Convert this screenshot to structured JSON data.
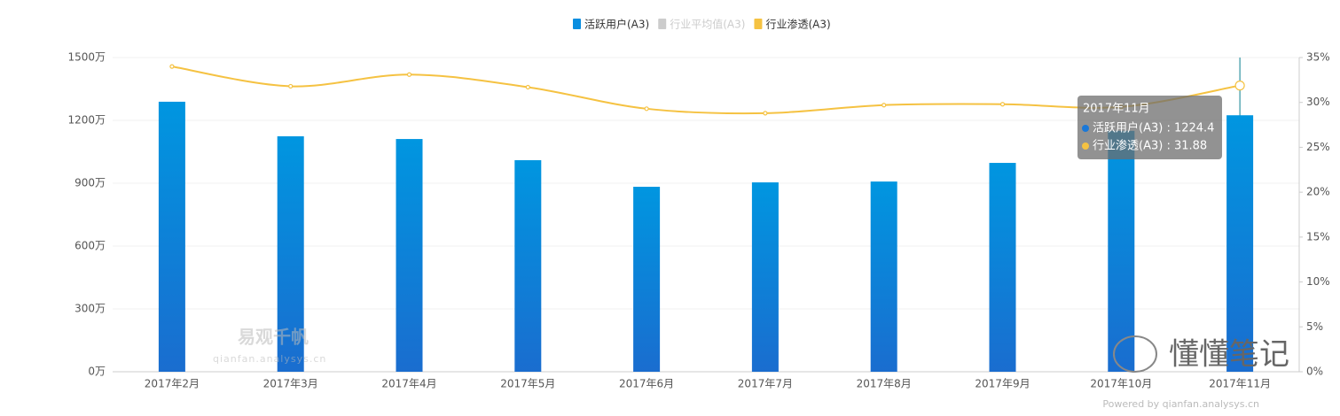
{
  "chart_data": {
    "type": "bar",
    "categories": [
      "2017年2月",
      "2017年3月",
      "2017年4月",
      "2017年5月",
      "2017年6月",
      "2017年7月",
      "2017年8月",
      "2017年9月",
      "2017年10月",
      "2017年11月"
    ],
    "series": [
      {
        "name": "活跃用户(A3)",
        "color": "#0a8ee0",
        "type": "bar",
        "values": [
          1289,
          1124,
          1111,
          1010,
          883,
          904,
          908,
          997,
          1150,
          1224.4
        ]
      },
      {
        "name": "行业平均值(A3)",
        "color": "#cccccc",
        "hidden": true
      },
      {
        "name": "行业渗透(A3)",
        "color": "#f5c242",
        "type": "line",
        "axis": "y2",
        "values": [
          34.0,
          31.8,
          33.1,
          31.7,
          29.3,
          28.8,
          29.7,
          29.8,
          29.5,
          31.88
        ]
      }
    ],
    "ylim": [
      0,
      1500
    ],
    "yticks": [
      {
        "value": 0,
        "label": "0万"
      },
      {
        "value": 300,
        "label": "300万"
      },
      {
        "value": 600,
        "label": "600万"
      },
      {
        "value": 900,
        "label": "900万"
      },
      {
        "value": 1200,
        "label": "1200万"
      },
      {
        "value": 1500,
        "label": "1500万"
      }
    ],
    "y2lim": [
      0,
      35
    ],
    "y2ticks": [
      {
        "value": 0,
        "label": "0%"
      },
      {
        "value": 5,
        "label": "5%"
      },
      {
        "value": 10,
        "label": "10%"
      },
      {
        "value": 15,
        "label": "15%"
      },
      {
        "value": 20,
        "label": "20%"
      },
      {
        "value": 25,
        "label": "25%"
      },
      {
        "value": 30,
        "label": "30%"
      },
      {
        "value": 35,
        "label": "35%"
      }
    ],
    "grid": true,
    "legend": "top",
    "tooltip": {
      "title": "2017年11月",
      "lines": [
        "活跃用户(A3) : 1224.4",
        "行业渗透(A3) : 31.88"
      ]
    },
    "watermark": {
      "brand": "易观千帆",
      "url": "qianfan.analysys.cn",
      "account": "懂懂笔记",
      "powered": "Powered by qianfan.analysys.cn"
    }
  }
}
